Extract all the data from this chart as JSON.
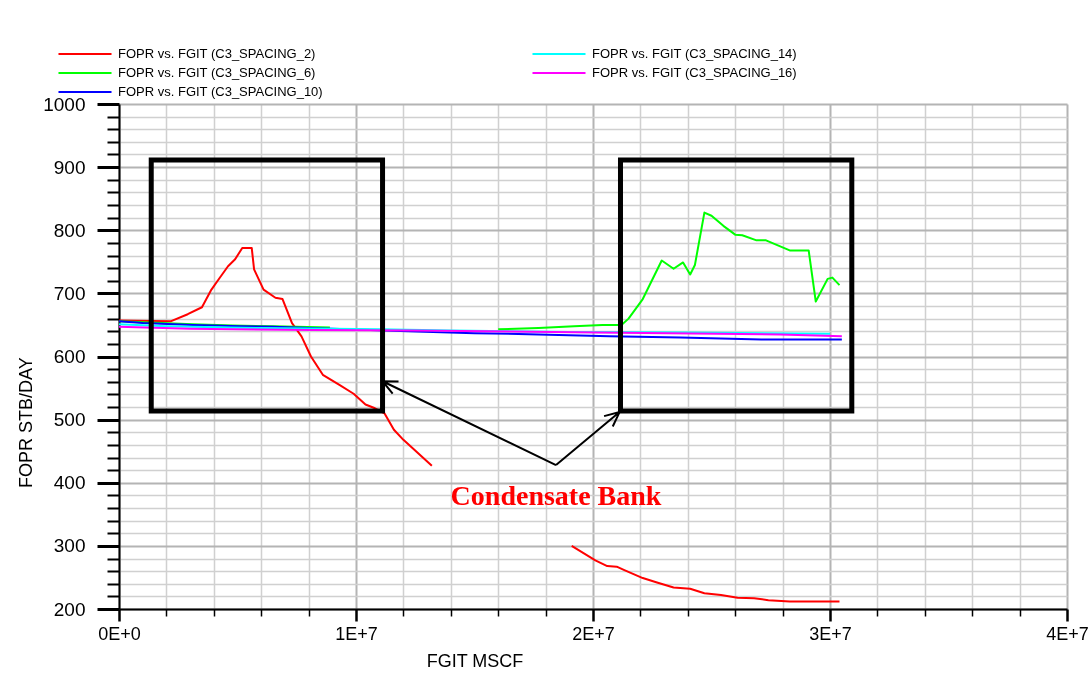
{
  "chart_data": {
    "type": "line",
    "xlabel": "FGIT MSCF",
    "ylabel": "FOPR STB/DAY",
    "xlim": [
      0,
      40000000
    ],
    "ylim": [
      200,
      1000
    ],
    "xticks": [
      {
        "value": 0,
        "label": "0E+0"
      },
      {
        "value": 2000000,
        "label": null
      },
      {
        "value": 4000000,
        "label": null
      },
      {
        "value": 6000000,
        "label": null
      },
      {
        "value": 8000000,
        "label": null
      },
      {
        "value": 10000000,
        "label": "1E+7"
      },
      {
        "value": 12000000,
        "label": null
      },
      {
        "value": 14000000,
        "label": null
      },
      {
        "value": 16000000,
        "label": null
      },
      {
        "value": 18000000,
        "label": null
      },
      {
        "value": 20000000,
        "label": "2E+7"
      },
      {
        "value": 22000000,
        "label": null
      },
      {
        "value": 24000000,
        "label": null
      },
      {
        "value": 26000000,
        "label": null
      },
      {
        "value": 28000000,
        "label": null
      },
      {
        "value": 30000000,
        "label": "3E+7"
      },
      {
        "value": 32000000,
        "label": null
      },
      {
        "value": 34000000,
        "label": null
      },
      {
        "value": 36000000,
        "label": null
      },
      {
        "value": 38000000,
        "label": null
      },
      {
        "value": 40000000,
        "label": "4E+7"
      }
    ],
    "yticks": [
      200,
      {
        "value": 220,
        "label": null
      },
      {
        "value": 240,
        "label": null
      },
      {
        "value": 260,
        "label": null
      },
      {
        "value": 280,
        "label": null
      },
      300,
      {
        "value": 320,
        "label": null
      },
      {
        "value": 340,
        "label": null
      },
      {
        "value": 360,
        "label": null
      },
      {
        "value": 380,
        "label": null
      },
      400,
      {
        "value": 420,
        "label": null
      },
      {
        "value": 440,
        "label": null
      },
      {
        "value": 460,
        "label": null
      },
      {
        "value": 480,
        "label": null
      },
      500,
      {
        "value": 520,
        "label": null
      },
      {
        "value": 540,
        "label": null
      },
      {
        "value": 560,
        "label": null
      },
      {
        "value": 580,
        "label": null
      },
      600,
      {
        "value": 620,
        "label": null
      },
      {
        "value": 640,
        "label": null
      },
      {
        "value": 660,
        "label": null
      },
      {
        "value": 680,
        "label": null
      },
      700,
      {
        "value": 720,
        "label": null
      },
      {
        "value": 740,
        "label": null
      },
      {
        "value": 760,
        "label": null
      },
      {
        "value": 780,
        "label": null
      },
      800,
      {
        "value": 820,
        "label": null
      },
      {
        "value": 840,
        "label": null
      },
      {
        "value": 860,
        "label": null
      },
      {
        "value": 880,
        "label": null
      },
      900,
      {
        "value": 920,
        "label": null
      },
      {
        "value": 940,
        "label": null
      },
      {
        "value": 960,
        "label": null
      },
      {
        "value": 980,
        "label": null
      },
      1000
    ],
    "grid": true,
    "legend": "top",
    "series": [
      {
        "name": "FOPR vs. FGIT (C3_SPACING_2)",
        "color": "#ff0000",
        "x": [
          0,
          2200000,
          2900000,
          3500000,
          3900000,
          4200000,
          4600000,
          4900000,
          5200000,
          5600000,
          5700000,
          6100000,
          6600000,
          6900000,
          7300000,
          7700000,
          8100000,
          8600000,
          9300000,
          9900000,
          10400000,
          10800000,
          11200000,
          11600000,
          12000000,
          13200000,
          16000000,
          19100000,
          20100000,
          20600000,
          21000000,
          21300000,
          22100000,
          22700000,
          23400000,
          24100000,
          24700000,
          25400000,
          26100000,
          26800000,
          27400000,
          28300000,
          30400000
        ],
        "values": [
          657,
          656,
          667,
          678,
          706,
          722,
          743,
          754,
          772,
          772,
          738,
          706,
          693,
          691,
          653,
          632,
          600,
          571,
          555,
          541,
          524,
          518,
          510,
          484,
          468,
          427,
          null,
          300,
          277,
          268,
          267,
          262,
          249,
          242,
          234,
          232,
          225,
          222,
          218,
          217,
          214,
          212,
          212
        ]
      },
      {
        "name": "FOPR vs. FGIT (C3_SPACING_6)",
        "color": "#00ff00",
        "x": [
          0,
          3100000,
          4800000,
          6500000,
          8900000,
          12500000,
          16000000,
          17700000,
          19200000,
          20400000,
          21200000,
          21500000,
          22100000,
          22900000,
          23400000,
          23800000,
          24100000,
          24300000,
          24700000,
          25000000,
          25500000,
          26000000,
          26300000,
          26900000,
          27300000,
          28300000,
          29100000,
          29400000,
          29900000,
          30100000,
          30400000
        ],
        "values": [
          656,
          651,
          649,
          648,
          646,
          null,
          643,
          645,
          648,
          650,
          650,
          660,
          691,
          752,
          739,
          749,
          730,
          745,
          828,
          823,
          807,
          793,
          792,
          784,
          784,
          768,
          768,
          687,
          723,
          725,
          713
        ]
      },
      {
        "name": "FOPR vs. FGIT (C3_SPACING_10)",
        "color": "#0000ff",
        "x": [
          0,
          1000000,
          3100000,
          5100000,
          6500000,
          7400000,
          12200000,
          15000000,
          17700000,
          20700000,
          23700000,
          27100000,
          30500000
        ],
        "values": [
          656,
          653,
          650,
          648,
          647,
          646,
          640,
          637,
          635,
          632,
          630,
          627,
          627
        ]
      },
      {
        "name": "FOPR vs. FGIT (C3_SPACING_14)",
        "color": "#00ffff",
        "x": [
          0,
          2000000,
          6000000,
          11000000,
          14000000,
          19000000,
          24000000,
          30000000
        ],
        "values": [
          651,
          648,
          645,
          643,
          641,
          639,
          638,
          636
        ]
      },
      {
        "name": "FOPR vs. FGIT (C3_SPACING_16)",
        "color": "#ff00ff",
        "x": [
          0,
          3000000,
          8100000,
          12400000,
          20200000,
          27900000,
          30500000
        ],
        "values": [
          647,
          644,
          642,
          641,
          638,
          635,
          632
        ]
      }
    ],
    "annotations": [
      "Condensate Bank"
    ]
  }
}
